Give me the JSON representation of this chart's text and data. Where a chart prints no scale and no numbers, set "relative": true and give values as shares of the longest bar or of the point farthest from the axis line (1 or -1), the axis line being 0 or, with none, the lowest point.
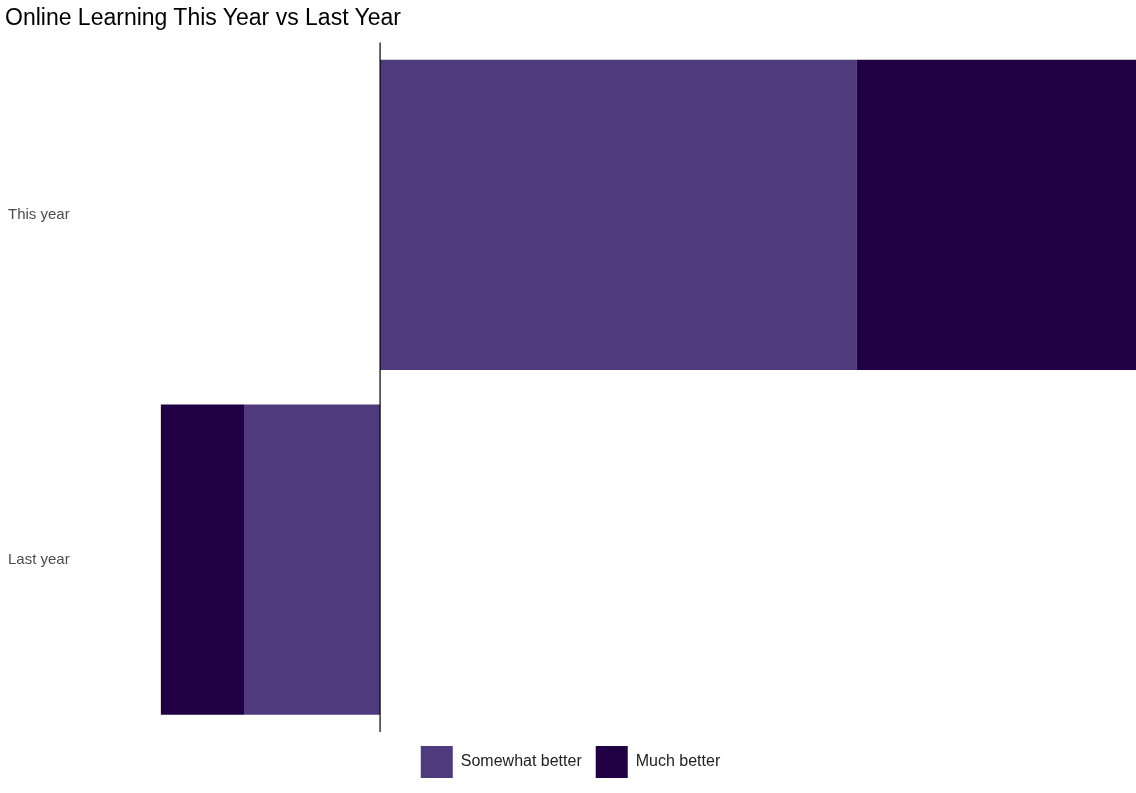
{
  "chart_data": {
    "type": "bar",
    "title": "Online Learning This Year vs Last Year",
    "orientation": "horizontal",
    "stacked": true,
    "relative": true,
    "categories": [
      "This year",
      "Last year"
    ],
    "series": [
      {
        "name": "Somewhat better",
        "color": "#4f3a7e",
        "values": [
          0.63,
          -0.18
        ]
      },
      {
        "name": "Much better",
        "color": "#200043",
        "values": [
          0.37,
          -0.11
        ]
      }
    ],
    "grid": false,
    "legend": "bottom"
  }
}
